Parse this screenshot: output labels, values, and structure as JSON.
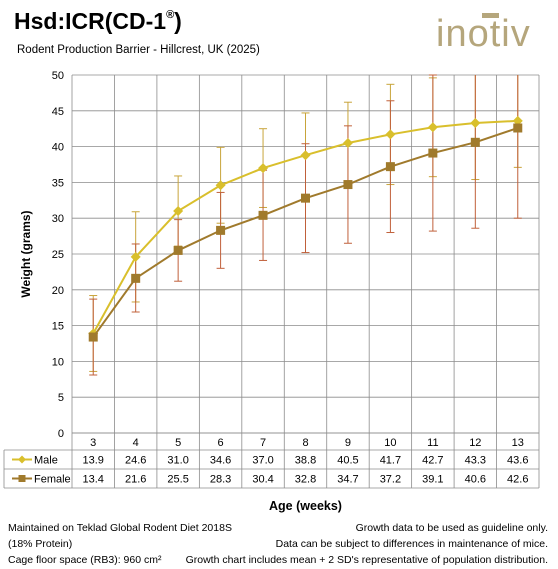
{
  "header": {
    "title_main": "Hsd:ICR(CD-1",
    "title_sup": "®",
    "title_close": ")",
    "subtitle": "Rodent Production Barrier - Hillcrest, UK (2025)",
    "logo_text": "inotiv",
    "logo_color": "#B5A67C"
  },
  "chart_data": {
    "type": "line",
    "title": "",
    "xlabel": "Age (weeks)",
    "ylabel": "Weight (grams)",
    "categories": [
      "3",
      "4",
      "5",
      "6",
      "7",
      "8",
      "9",
      "10",
      "11",
      "12",
      "13"
    ],
    "ylim": [
      0,
      50
    ],
    "yticks": [
      0,
      5,
      10,
      15,
      20,
      25,
      30,
      35,
      40,
      45,
      50
    ],
    "grid": true,
    "legend": "data table at bottom",
    "series": [
      {
        "name": "Male",
        "marker": "diamond",
        "color": "#D9BF2C",
        "error_color": "#C8A43A",
        "values": [
          13.9,
          24.6,
          31.0,
          34.6,
          37.0,
          38.8,
          40.5,
          41.7,
          42.7,
          43.3,
          43.6
        ],
        "labels": [
          "13.9",
          "24.6",
          "31.0",
          "34.6",
          "37.0",
          "38.8",
          "40.5",
          "41.7",
          "42.7",
          "43.3",
          "43.6"
        ],
        "error_low": [
          8.6,
          18.3,
          26.1,
          29.3,
          31.5,
          32.9,
          34.8,
          34.7,
          35.8,
          35.4,
          37.1
        ],
        "error_high": [
          19.2,
          30.9,
          35.9,
          39.9,
          42.5,
          44.7,
          46.2,
          48.7,
          49.6,
          51.2,
          50.1
        ]
      },
      {
        "name": "Female",
        "marker": "square",
        "color": "#A07A2C",
        "error_color": "#C0603A",
        "values": [
          13.4,
          21.6,
          25.5,
          28.3,
          30.4,
          32.8,
          34.7,
          37.2,
          39.1,
          40.6,
          42.6
        ],
        "labels": [
          "13.4",
          "21.6",
          "25.5",
          "28.3",
          "30.4",
          "32.8",
          "34.7",
          "37.2",
          "39.1",
          "40.6",
          "42.6"
        ],
        "error_low": [
          8.1,
          16.9,
          21.2,
          23.0,
          24.1,
          25.2,
          26.5,
          28.0,
          28.2,
          28.6,
          30.0
        ],
        "error_high": [
          18.7,
          26.4,
          29.8,
          33.6,
          36.7,
          40.4,
          42.9,
          46.4,
          50.0,
          52.6,
          55.2
        ]
      }
    ]
  },
  "footer": {
    "left": [
      "Maintained on Teklad Global Rodent Diet 2018S",
      "(18% Protein)",
      "Cage floor space (RB3): 960 cm²"
    ],
    "right": [
      "Growth data to be used as guideline only.",
      "Data can be subject to differences in maintenance of mice.",
      "Growth chart includes mean + 2 SD's representative of population distribution."
    ]
  }
}
